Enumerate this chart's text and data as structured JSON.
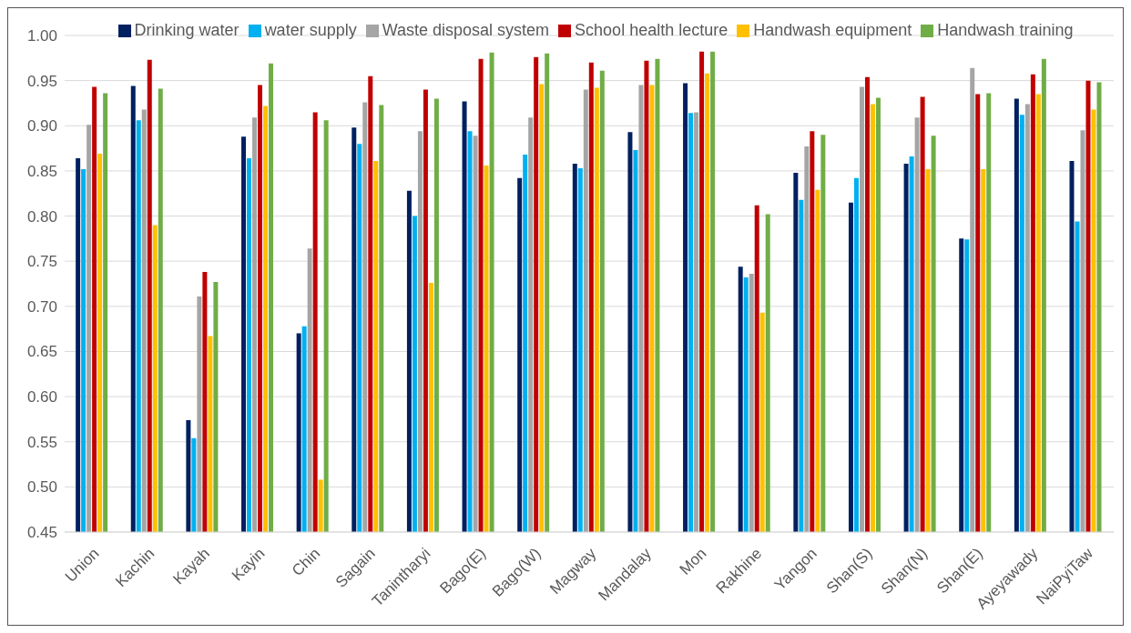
{
  "chart_data": {
    "type": "bar",
    "categories": [
      "Union",
      "Kachin",
      "Kayah",
      "Kayin",
      "Chin",
      "Sagain",
      "Tanintharyi",
      "Bago(E)",
      "Bago(W)",
      "Magway",
      "Mandalay",
      "Mon",
      "Rakhine",
      "Yangon",
      "Shan(S)",
      "Shan(N)",
      "Shan(E)",
      "Ayeyawady",
      "NaiPyiTaw"
    ],
    "series": [
      {
        "name": "Drinking water",
        "color": "#002060",
        "values": [
          0.864,
          0.944,
          0.574,
          0.888,
          0.67,
          0.898,
          0.828,
          0.927,
          0.842,
          0.858,
          0.893,
          0.947,
          0.744,
          0.848,
          0.815,
          0.858,
          0.775,
          0.93,
          0.861
        ]
      },
      {
        "name": "water supply",
        "color": "#00b0f0",
        "values": [
          0.852,
          0.906,
          0.554,
          0.864,
          0.678,
          0.88,
          0.8,
          0.894,
          0.868,
          0.853,
          0.873,
          0.914,
          0.732,
          0.818,
          0.842,
          0.866,
          0.774,
          0.912,
          0.794
        ]
      },
      {
        "name": "Waste disposal system",
        "color": "#a5a5a5",
        "values": [
          0.901,
          0.918,
          0.711,
          0.909,
          0.764,
          0.926,
          0.894,
          0.889,
          0.909,
          0.94,
          0.945,
          0.915,
          0.736,
          0.877,
          0.943,
          0.909,
          0.964,
          0.924,
          0.895
        ]
      },
      {
        "name": "School health lecture",
        "color": "#c00000",
        "values": [
          0.943,
          0.973,
          0.738,
          0.945,
          0.915,
          0.955,
          0.94,
          0.974,
          0.976,
          0.97,
          0.972,
          0.982,
          0.812,
          0.894,
          0.954,
          0.932,
          0.935,
          0.957,
          0.95
        ]
      },
      {
        "name": "Handwash equipment",
        "color": "#ffc000",
        "values": [
          0.869,
          0.79,
          0.667,
          0.922,
          0.508,
          0.861,
          0.726,
          0.856,
          0.946,
          0.942,
          0.945,
          0.958,
          0.693,
          0.829,
          0.924,
          0.852,
          0.852,
          0.935,
          0.918
        ]
      },
      {
        "name": "Handwash training",
        "color": "#70ad47",
        "values": [
          0.936,
          0.941,
          0.727,
          0.969,
          0.906,
          0.923,
          0.93,
          0.981,
          0.98,
          0.961,
          0.974,
          0.982,
          0.802,
          0.89,
          0.931,
          0.889,
          0.936,
          0.974,
          0.948
        ]
      }
    ],
    "ylim": [
      0.45,
      1.0
    ],
    "yticks": [
      {
        "value": 0.45,
        "label": "0.45"
      },
      {
        "value": 0.5,
        "label": "0.50"
      },
      {
        "value": 0.55,
        "label": "0.55"
      },
      {
        "value": 0.6,
        "label": "0.60"
      },
      {
        "value": 0.65,
        "label": "0.65"
      },
      {
        "value": 0.7,
        "label": "0.70"
      },
      {
        "value": 0.75,
        "label": "0.75"
      },
      {
        "value": 0.8,
        "label": "0.80"
      },
      {
        "value": 0.85,
        "label": "0.85"
      },
      {
        "value": 0.9,
        "label": "0.90"
      },
      {
        "value": 0.95,
        "label": "0.95"
      },
      {
        "value": 1.0,
        "label": "1.00"
      }
    ],
    "grid": "y",
    "legend": "top"
  }
}
